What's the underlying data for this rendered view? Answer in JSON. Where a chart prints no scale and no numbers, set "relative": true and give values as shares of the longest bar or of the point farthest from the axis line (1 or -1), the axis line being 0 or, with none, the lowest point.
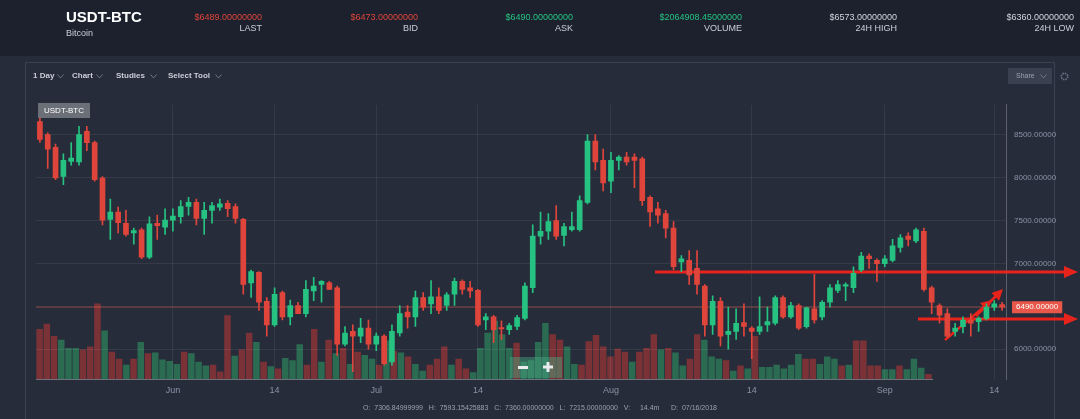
{
  "chart_data": [
    {
      "type": "candlestick",
      "title": "USDT-BTC",
      "subtitle": "Bitcoin",
      "categories": [
        null,
        null,
        null,
        null,
        null,
        null,
        null,
        null,
        null,
        null,
        null,
        null,
        null,
        null,
        null,
        null,
        null,
        "Jun",
        null,
        null,
        null,
        null,
        null,
        null,
        null,
        null,
        null,
        null,
        null,
        null,
        "14",
        null,
        null,
        null,
        null,
        null,
        null,
        null,
        null,
        null,
        null,
        null,
        null,
        "Jul",
        null,
        null,
        null,
        null,
        null,
        null,
        null,
        null,
        null,
        null,
        null,
        null,
        "14",
        null,
        null,
        null,
        null,
        null,
        null,
        null,
        null,
        null,
        null,
        null,
        null,
        null,
        null,
        null,
        null,
        "Aug",
        null,
        null,
        null,
        null,
        null,
        null,
        null,
        null,
        null,
        null,
        null,
        null,
        null,
        null,
        null,
        null,
        null,
        "14",
        null,
        null,
        null,
        null,
        null,
        null,
        null,
        null,
        null,
        null,
        null,
        null,
        null,
        null,
        null,
        null,
        "Sep",
        null,
        null,
        null,
        null,
        null,
        null,
        null,
        null,
        null,
        null,
        null,
        null,
        null,
        "14",
        null
      ],
      "ohlc": [
        [
          8654,
          8710,
          8410,
          8447
        ],
        [
          8504,
          8522,
          8108,
          8334
        ],
        [
          8353,
          8391,
          7977,
          7996
        ],
        [
          8014,
          8278,
          7920,
          8202
        ],
        [
          8191,
          8410,
          8146,
          8229
        ],
        [
          8184,
          8598,
          8146,
          8504
        ],
        [
          8541,
          8598,
          8315,
          8409
        ],
        [
          8409,
          8428,
          7958,
          7977
        ],
        [
          7996,
          8014,
          7450,
          7506
        ],
        [
          7514,
          7751,
          7281,
          7600
        ],
        [
          7600,
          7657,
          7356,
          7476
        ],
        [
          7469,
          7619,
          7318,
          7337
        ],
        [
          7356,
          7412,
          7224,
          7382
        ],
        [
          7393,
          7412,
          7055,
          7074
        ],
        [
          7074,
          7544,
          7055,
          7461
        ],
        [
          7469,
          7563,
          7281,
          7439
        ],
        [
          7424,
          7638,
          7337,
          7506
        ],
        [
          7506,
          7638,
          7375,
          7551
        ],
        [
          7544,
          7732,
          7469,
          7664
        ],
        [
          7664,
          7770,
          7563,
          7713
        ],
        [
          7713,
          7751,
          7450,
          7525
        ],
        [
          7525,
          7713,
          7337,
          7619
        ],
        [
          7619,
          7713,
          7469,
          7676
        ],
        [
          7657,
          7751,
          7619,
          7694
        ],
        [
          7702,
          7732,
          7544,
          7638
        ],
        [
          7664,
          7694,
          7469,
          7525
        ],
        [
          7514,
          7525,
          6641,
          6754
        ],
        [
          6773,
          6923,
          6603,
          6904
        ],
        [
          6897,
          6904,
          6453,
          6547
        ],
        [
          6558,
          6603,
          6152,
          6283
        ],
        [
          6283,
          6716,
          6265,
          6641
        ],
        [
          6660,
          6679,
          6340,
          6377
        ],
        [
          6377,
          6573,
          6283,
          6509
        ],
        [
          6509,
          6547,
          6415,
          6415
        ],
        [
          6415,
          6799,
          6377,
          6697
        ],
        [
          6679,
          6837,
          6566,
          6735
        ],
        [
          6754,
          6799,
          6547,
          6791
        ],
        [
          6773,
          6791,
          6697,
          6697
        ],
        [
          6716,
          6735,
          5926,
          6058
        ],
        [
          6058,
          6264,
          6039,
          6189
        ],
        [
          6208,
          6283,
          5738,
          6152
        ],
        [
          6152,
          6359,
          6077,
          6246
        ],
        [
          6246,
          6340,
          6001,
          6058
        ],
        [
          6058,
          6189,
          5982,
          6152
        ],
        [
          6152,
          6171,
          5813,
          5832
        ],
        [
          5851,
          6283,
          5813,
          6208
        ],
        [
          6189,
          6509,
          6152,
          6415
        ],
        [
          6434,
          6509,
          6246,
          6377
        ],
        [
          6377,
          6679,
          6265,
          6603
        ],
        [
          6603,
          6660,
          6453,
          6490
        ],
        [
          6528,
          6799,
          6415,
          6611
        ],
        [
          6611,
          6716,
          6415,
          6453
        ],
        [
          6509,
          6660,
          6453,
          6633
        ],
        [
          6641,
          6829,
          6509,
          6791
        ],
        [
          6791,
          6810,
          6641,
          6697
        ],
        [
          6716,
          6791,
          6603,
          6679
        ],
        [
          6686,
          6697,
          6265,
          6283
        ],
        [
          6340,
          6415,
          6227,
          6377
        ],
        [
          6377,
          6396,
          6077,
          6227
        ],
        [
          6253,
          6332,
          6114,
          6235
        ],
        [
          6227,
          6302,
          6171,
          6276
        ],
        [
          6265,
          6396,
          6227,
          6370
        ],
        [
          6359,
          6773,
          6340,
          6735
        ],
        [
          6716,
          7450,
          6660,
          7318
        ],
        [
          7318,
          7600,
          7224,
          7375
        ],
        [
          7375,
          7582,
          7281,
          7488
        ],
        [
          7499,
          7676,
          7281,
          7318
        ],
        [
          7326,
          7469,
          7205,
          7431
        ],
        [
          7394,
          7600,
          7375,
          7431
        ],
        [
          7393,
          7788,
          7375,
          7732
        ],
        [
          7713,
          8504,
          7694,
          8428
        ],
        [
          8428,
          8504,
          8090,
          8184
        ],
        [
          8202,
          8334,
          7845,
          7939
        ],
        [
          7958,
          8297,
          7826,
          8202
        ],
        [
          8202,
          8259,
          8090,
          8240
        ],
        [
          8240,
          8297,
          8146,
          8184
        ],
        [
          8240,
          8278,
          7883,
          8202
        ],
        [
          8221,
          8240,
          7676,
          7732
        ],
        [
          7770,
          7788,
          7431,
          7600
        ],
        [
          7638,
          7713,
          7469,
          7563
        ],
        [
          7582,
          7619,
          7299,
          7412
        ],
        [
          7412,
          7487,
          6923,
          6961
        ],
        [
          7017,
          7092,
          6904,
          7055
        ],
        [
          7036,
          7149,
          6754,
          6867
        ],
        [
          6942,
          7149,
          6641,
          6754
        ],
        [
          6735,
          6754,
          6152,
          6283
        ],
        [
          6283,
          6622,
          6171,
          6558
        ],
        [
          6558,
          6603,
          6039,
          6152
        ],
        [
          6171,
          6490,
          6001,
          6208
        ],
        [
          6208,
          6472,
          6114,
          6302
        ],
        [
          6309,
          6528,
          6152,
          6265
        ],
        [
          6246,
          6264,
          5888,
          6208
        ],
        [
          6208,
          6611,
          6171,
          6265
        ],
        [
          6283,
          6490,
          6208,
          6321
        ],
        [
          6302,
          6622,
          6283,
          6603
        ],
        [
          6603,
          6622,
          6359,
          6377
        ],
        [
          6377,
          6547,
          6359,
          6509
        ],
        [
          6509,
          6528,
          6227,
          6246
        ],
        [
          6264,
          6490,
          6246,
          6483
        ],
        [
          6472,
          6874,
          6302,
          6340
        ],
        [
          6377,
          6566,
          6340,
          6547
        ],
        [
          6547,
          6754,
          6490,
          6716
        ],
        [
          6686,
          6799,
          6660,
          6754
        ],
        [
          6735,
          6773,
          6566,
          6754
        ],
        [
          6716,
          6961,
          6660,
          6886
        ],
        [
          6923,
          7130,
          6904,
          7085
        ],
        [
          7085,
          7111,
          6942,
          7055
        ],
        [
          7036,
          7055,
          6791,
          6998
        ],
        [
          6998,
          7092,
          6961,
          7055
        ],
        [
          7036,
          7281,
          7017,
          7205
        ],
        [
          7186,
          7337,
          7130,
          7299
        ],
        [
          7318,
          7356,
          7205,
          7281
        ],
        [
          7262,
          7412,
          7243,
          7393
        ],
        [
          7375,
          7412,
          6678,
          6697
        ],
        [
          6716,
          6735,
          6415,
          6547
        ],
        [
          6509,
          6528,
          6302,
          6396
        ],
        [
          6415,
          6472,
          6133,
          6152
        ],
        [
          6208,
          6302,
          6152,
          6246
        ],
        [
          6264,
          6377,
          6189,
          6340
        ],
        [
          6340,
          6415,
          6152,
          6302
        ],
        [
          6321,
          6377,
          6208,
          6359
        ],
        [
          6359,
          6528,
          6340,
          6490
        ],
        [
          6490,
          6566,
          6453,
          6528
        ],
        [
          6521,
          6547,
          6453,
          6490
        ]
      ],
      "colors": [
        "#e0453b",
        "#e0453b",
        "#e0453b",
        "#26c281",
        "#26c281",
        "#26c281",
        "#e0453b",
        "#e0453b",
        "#e0453b",
        "#26c281",
        "#e0453b",
        "#e0453b",
        "#26c281",
        "#e0453b",
        "#26c281",
        "#e0453b",
        "#26c281",
        "#26c281",
        "#26c281",
        "#26c281",
        "#e0453b",
        "#26c281",
        "#26c281",
        "#26c281",
        "#e0453b",
        "#e0453b",
        "#e0453b",
        "#26c281",
        "#e0453b",
        "#e0453b",
        "#26c281",
        "#e0453b",
        "#26c281",
        "#e0453b",
        "#26c281",
        "#26c281",
        "#26c281",
        "#e0453b",
        "#e0453b",
        "#26c281",
        "#e0453b",
        "#26c281",
        "#e0453b",
        "#26c281",
        "#e0453b",
        "#26c281",
        "#26c281",
        "#e0453b",
        "#26c281",
        "#e0453b",
        "#26c281",
        "#e0453b",
        "#26c281",
        "#26c281",
        "#e0453b",
        "#e0453b",
        "#e0453b",
        "#26c281",
        "#e0453b",
        "#e0453b",
        "#26c281",
        "#26c281",
        "#26c281",
        "#26c281",
        "#26c281",
        "#26c281",
        "#e0453b",
        "#26c281",
        "#26c281",
        "#26c281",
        "#26c281",
        "#e0453b",
        "#e0453b",
        "#26c281",
        "#26c281",
        "#e0453b",
        "#e0453b",
        "#e0453b",
        "#e0453b",
        "#e0453b",
        "#e0453b",
        "#e0453b",
        "#26c281",
        "#e0453b",
        "#e0453b",
        "#e0453b",
        "#26c281",
        "#e0453b",
        "#26c281",
        "#26c281",
        "#e0453b",
        "#e0453b",
        "#26c281",
        "#26c281",
        "#26c281",
        "#e0453b",
        "#26c281",
        "#e0453b",
        "#26c281",
        "#e0453b",
        "#26c281",
        "#26c281",
        "#26c281",
        "#26c281",
        "#26c281",
        "#26c281",
        "#e0453b",
        "#e0453b",
        "#26c281",
        "#26c281",
        "#26c281",
        "#e0453b",
        "#26c281",
        "#e0453b",
        "#e0453b",
        "#e0453b",
        "#e0453b",
        "#26c281",
        "#26c281",
        "#e0453b",
        "#26c281",
        "#26c281",
        "#26c281",
        "#e0453b"
      ],
      "ylim": [
        5650,
        8850
      ],
      "yticks": [
        {
          "value": 6000,
          "label": "6000.00000"
        },
        {
          "value": 6500,
          "label": null
        },
        {
          "value": 7000,
          "label": "7000.00000"
        },
        {
          "value": 7500,
          "label": "7500.00000"
        },
        {
          "value": 8000,
          "label": "8000.00000"
        },
        {
          "value": 8500,
          "label": "8500.00000"
        }
      ],
      "grid": true,
      "ref_lines": [
        {
          "axis": "y",
          "value": 6490,
          "label": "6490.00000",
          "color": "#e8574a"
        }
      ],
      "annotations": [
        "USDT-BTC",
        "$6489.00000000",
        "LAST",
        "$6473.00000000",
        "BID",
        "$6490.00000000",
        "ASK",
        "$2064908.45000000",
        "VOLUME",
        "$6573.00000000",
        "24H HIGH",
        "$6360.00000000",
        "24H LOW",
        "1 Day",
        "Chart",
        "Studies",
        "Select Tool",
        "Share",
        "O:  7306.84999999   H:  7593.15425883   C:  7360.00000000   L:  7215.00000000   V:     14.4m      D:  07/16/2018"
      ]
    },
    {
      "type": "bar",
      "relative": true,
      "tick_labels": false,
      "categories": [
        null,
        null,
        null,
        null,
        null,
        null,
        null,
        null,
        null,
        null,
        null,
        null,
        null,
        null,
        null,
        null,
        null,
        null,
        null,
        null,
        null,
        null,
        null,
        null,
        null,
        null,
        null,
        null,
        null,
        null,
        null,
        null,
        null,
        null,
        null,
        null,
        null,
        null,
        null,
        null,
        null,
        null,
        null,
        null,
        null,
        null,
        null,
        null,
        null,
        null,
        null,
        null,
        null,
        null,
        null,
        null,
        null,
        null,
        null,
        null,
        null,
        null,
        null,
        null,
        null,
        null,
        null,
        null,
        null,
        null,
        null,
        null,
        null,
        null,
        null,
        null,
        null,
        null,
        null,
        null,
        null,
        null,
        null,
        null,
        null,
        null,
        null,
        null,
        null,
        null,
        null,
        null,
        null,
        null,
        null,
        null,
        null,
        null,
        null,
        null,
        null,
        null,
        null,
        null,
        null,
        null,
        null,
        null,
        null,
        null,
        null,
        null,
        null,
        null,
        null,
        null,
        null,
        null,
        null,
        null,
        null,
        null,
        null,
        null
      ],
      "values": [
        0.66,
        0.73,
        0.57,
        0.52,
        0.41,
        0.41,
        0.39,
        0.43,
        1,
        0.64,
        0.36,
        0.27,
        0.19,
        0.27,
        0.49,
        0.34,
        0.35,
        0.26,
        0.24,
        0.2,
        0.36,
        0.34,
        0.23,
        0.18,
        0.19,
        0.1,
        0.84,
        0.31,
        0.39,
        0.61,
        0.49,
        0.23,
        0.17,
        0.14,
        0.28,
        0.25,
        0.46,
        0.19,
        0.66,
        0.23,
        0.52,
        0.34,
        0.41,
        0.2,
        0.36,
        0.32,
        0.27,
        0.19,
        0.51,
        0.37,
        0.35,
        0.3,
        0.2,
        0.11,
        0.19,
        0.27,
        0.43,
        0.19,
        0.27,
        0.14,
        0.09,
        0.41,
        0.61,
        0.77,
        0.59,
        0.41,
        0.48,
        0.23,
        0.25,
        0.49,
        0.74,
        0.59,
        0.52,
        0.43,
        0.2,
        0.19,
        0.5,
        0.58,
        0.43,
        0.3,
        0.4,
        0.36,
        0.23,
        0.36,
        0.41,
        0.59,
        0.39,
        0.41,
        0.35,
        0.18,
        0.27,
        0.59,
        0.52,
        0.3,
        0.27,
        0.25,
        0.11,
        0.18,
        0.14,
        0.57,
        0.16,
        0.16,
        0.19,
        0.14,
        0.19,
        0.33,
        0.27,
        0.27,
        0.2,
        0.3,
        0.27,
        0.18,
        0.19,
        0.51,
        0.51,
        0.18,
        0.18,
        0.13,
        0.13,
        0.18,
        0.13,
        0.27,
        0.15,
        0.07
      ],
      "colors": [
        "#7b3236",
        "#7b3236",
        "#7b3236",
        "#2a6b52",
        "#2a6b52",
        "#2a6b52",
        "#7b3236",
        "#7b3236",
        "#7b3236",
        "#2a6b52",
        "#7b3236",
        "#7b3236",
        "#2a6b52",
        "#7b3236",
        "#2a6b52",
        "#7b3236",
        "#2a6b52",
        "#2a6b52",
        "#2a6b52",
        "#2a6b52",
        "#7b3236",
        "#2a6b52",
        "#2a6b52",
        "#2a6b52",
        "#7b3236",
        "#7b3236",
        "#7b3236",
        "#2a6b52",
        "#7b3236",
        "#7b3236",
        "#2a6b52",
        "#7b3236",
        "#2a6b52",
        "#7b3236",
        "#2a6b52",
        "#2a6b52",
        "#2a6b52",
        "#7b3236",
        "#7b3236",
        "#2a6b52",
        "#7b3236",
        "#2a6b52",
        "#7b3236",
        "#2a6b52",
        "#7b3236",
        "#2a6b52",
        "#2a6b52",
        "#7b3236",
        "#2a6b52",
        "#7b3236",
        "#2a6b52",
        "#7b3236",
        "#2a6b52",
        "#2a6b52",
        "#7b3236",
        "#7b3236",
        "#7b3236",
        "#2a6b52",
        "#7b3236",
        "#7b3236",
        "#2a6b52",
        "#2a6b52",
        "#2a6b52",
        "#2a6b52",
        "#2a6b52",
        "#2a6b52",
        "#7b3236",
        "#2a6b52",
        "#2a6b52",
        "#2a6b52",
        "#2a6b52",
        "#7b3236",
        "#7b3236",
        "#2a6b52",
        "#2a6b52",
        "#7b3236",
        "#7b3236",
        "#7b3236",
        "#7b3236",
        "#7b3236",
        "#7b3236",
        "#7b3236",
        "#2a6b52",
        "#7b3236",
        "#7b3236",
        "#7b3236",
        "#2a6b52",
        "#7b3236",
        "#2a6b52",
        "#2a6b52",
        "#7b3236",
        "#7b3236",
        "#2a6b52",
        "#2a6b52",
        "#2a6b52",
        "#7b3236",
        "#2a6b52",
        "#7b3236",
        "#2a6b52",
        "#7b3236",
        "#2a6b52",
        "#2a6b52",
        "#2a6b52",
        "#2a6b52",
        "#2a6b52",
        "#2a6b52",
        "#7b3236",
        "#7b3236",
        "#2a6b52",
        "#2a6b52",
        "#2a6b52",
        "#7b3236",
        "#2a6b52",
        "#7b3236",
        "#7b3236",
        "#7b3236",
        "#7b3236",
        "#2a6b52",
        "#2a6b52",
        "#7b3236",
        "#2a6b52",
        "#2a6b52",
        "#2a6b52",
        "#7b3236"
      ]
    }
  ]
}
